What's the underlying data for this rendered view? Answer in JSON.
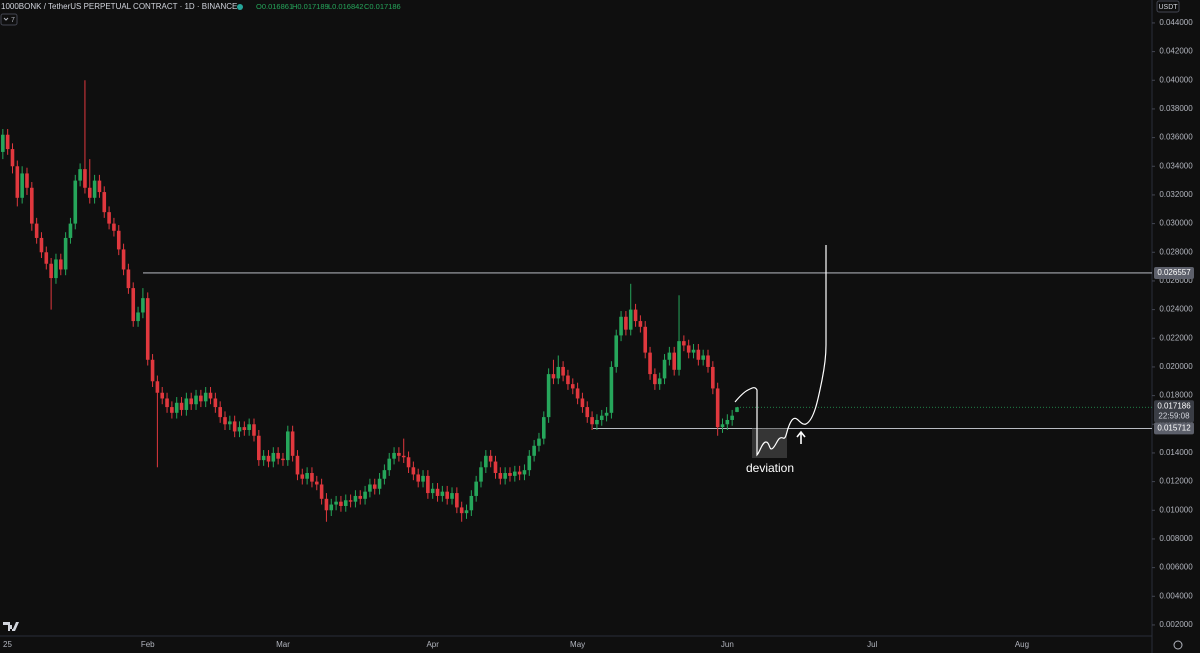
{
  "header": {
    "title": "1000BONK / TetherUS PERPETUAL CONTRACT · 1D · BINANCE",
    "ohlc": [
      "O0.016861",
      "H0.017189",
      "L0.016842",
      "C0.017186"
    ],
    "indicator_count": "7",
    "currency": "USDT"
  },
  "chart_data": {
    "type": "candlestick",
    "up_color": "#26a65b",
    "down_color": "#e0383e",
    "categories": [
      "25",
      null,
      null,
      null,
      null,
      null,
      null,
      null,
      null,
      null,
      null,
      null,
      null,
      null,
      null,
      null,
      null,
      null,
      null,
      null,
      null,
      null,
      null,
      null,
      null,
      null,
      null,
      null,
      null,
      null,
      null,
      "Feb",
      null,
      null,
      null,
      null,
      null,
      null,
      null,
      null,
      null,
      null,
      null,
      null,
      null,
      null,
      null,
      null,
      null,
      null,
      null,
      null,
      null,
      null,
      null,
      null,
      null,
      null,
      null,
      "Mar",
      null,
      null,
      null,
      null,
      null,
      null,
      null,
      null,
      null,
      null,
      null,
      null,
      null,
      null,
      null,
      null,
      null,
      null,
      null,
      null,
      null,
      null,
      null,
      null,
      null,
      null,
      null,
      null,
      null,
      null,
      "Apr",
      null,
      null,
      null,
      null,
      null,
      null,
      null,
      null,
      null,
      null,
      null,
      null,
      null,
      null,
      null,
      null,
      null,
      null,
      null,
      null,
      null,
      null,
      null,
      null,
      null,
      null,
      null,
      null,
      null,
      "May",
      null,
      null,
      null,
      null,
      null,
      null,
      null,
      null,
      null,
      null,
      null,
      null,
      null,
      null,
      null,
      null,
      null,
      null,
      null,
      null,
      null,
      null,
      null,
      null,
      null,
      null,
      null,
      null,
      null,
      null,
      "Jun",
      null,
      null,
      null,
      null,
      null,
      null,
      null,
      null,
      null,
      null,
      null,
      null,
      null,
      null,
      null,
      null,
      null,
      null,
      null,
      null,
      null,
      null,
      null,
      null,
      null,
      null,
      null,
      null,
      null,
      "Jul",
      null,
      null,
      null,
      null,
      null,
      null,
      null,
      null,
      null,
      null,
      null,
      null,
      null,
      null,
      null,
      null,
      null,
      null,
      null,
      null,
      null,
      null,
      null,
      null,
      null,
      null,
      null,
      null,
      null,
      null,
      "Aug"
    ],
    "open": [
      0.033,
      0.035,
      0.0362,
      0.0352,
      0.034,
      0.0318,
      0.0335,
      0.0325,
      0.03,
      0.029,
      0.028,
      0.0272,
      0.0262,
      0.0275,
      0.0268,
      0.029,
      0.03,
      0.033,
      0.0338,
      0.0325,
      0.0318,
      0.033,
      0.0322,
      0.0308,
      0.03,
      0.0295,
      0.0282,
      0.0268,
      0.0255,
      0.0232,
      0.0238,
      0.0248,
      0.0205,
      0.019,
      0.0182,
      0.0178,
      0.0172,
      0.0168,
      0.0175,
      0.017,
      0.0178,
      0.0174,
      0.018,
      0.0176,
      0.0182,
      0.0178,
      0.0172,
      0.0165,
      0.016,
      0.0162,
      0.0155,
      0.0158,
      0.0156,
      0.016,
      0.0152,
      0.0135,
      0.0138,
      0.0134,
      0.014,
      0.0136,
      0.0135,
      0.0155,
      0.0138,
      0.0125,
      0.0122,
      0.0126,
      0.012,
      0.0118,
      0.0108,
      0.01,
      0.0104,
      0.0106,
      0.0103,
      0.0107,
      0.0106,
      0.011,
      0.0108,
      0.0113,
      0.0118,
      0.0115,
      0.0122,
      0.0128,
      0.0136,
      0.014,
      0.0138,
      0.0137,
      0.013,
      0.0125,
      0.012,
      0.0124,
      0.0112,
      0.0115,
      0.011,
      0.0113,
      0.0108,
      0.0112,
      0.0102,
      0.0098,
      0.01,
      0.011,
      0.012,
      0.013,
      0.0138,
      0.0134,
      0.0126,
      0.0122,
      0.0126,
      0.0124,
      0.0127,
      0.0125,
      0.0128,
      0.0138,
      0.0145,
      0.015,
      0.0165,
      0.0195,
      0.0192,
      0.02,
      0.0194,
      0.0188,
      0.0185,
      0.0178,
      0.0172,
      0.0165,
      0.016,
      0.0163,
      0.0166,
      0.0168,
      0.02,
      0.0222,
      0.0235,
      0.0226,
      0.024,
      0.0232,
      0.0228,
      0.021,
      0.0195,
      0.0188,
      0.0192,
      0.0205,
      0.021,
      0.0198,
      0.0218,
      0.0215,
      0.021,
      0.0212,
      0.0205,
      0.0208,
      0.02,
      0.0185,
      0.0158,
      0.016,
      0.0163,
      0.016861,
      null,
      null,
      null,
      null,
      null,
      null,
      null,
      null,
      null,
      null,
      null,
      null,
      null,
      null,
      null,
      null,
      null,
      null,
      null,
      null,
      null,
      null,
      null,
      null,
      null,
      null,
      null,
      null,
      null,
      null,
      null,
      null,
      null,
      null,
      null,
      null,
      null,
      null,
      null,
      null,
      null,
      null,
      null,
      null,
      null,
      null,
      null,
      null,
      null,
      null,
      null,
      null,
      null,
      null,
      null,
      null,
      null,
      null,
      null
    ],
    "high": [
      0.0368,
      0.0366,
      0.0366,
      0.0356,
      0.0344,
      0.034,
      0.0339,
      0.0329,
      0.0304,
      0.0294,
      0.0284,
      0.0276,
      0.0279,
      0.0279,
      0.0294,
      0.0304,
      0.0334,
      0.0342,
      0.04,
      0.0345,
      0.0334,
      0.0334,
      0.0326,
      0.0312,
      0.0304,
      0.0299,
      0.0286,
      0.0272,
      0.0259,
      0.0242,
      0.0255,
      0.0252,
      0.0209,
      0.0194,
      0.0186,
      0.0182,
      0.0176,
      0.0179,
      0.0179,
      0.0182,
      0.0182,
      0.0184,
      0.0184,
      0.0186,
      0.0186,
      0.0182,
      0.0176,
      0.0169,
      0.0166,
      0.0166,
      0.0162,
      0.0162,
      0.0164,
      0.0164,
      0.0156,
      0.0142,
      0.0142,
      0.0144,
      0.0144,
      0.014,
      0.0159,
      0.0159,
      0.0142,
      0.0129,
      0.013,
      0.013,
      0.0124,
      0.0122,
      0.0112,
      0.0108,
      0.011,
      0.011,
      0.0111,
      0.0111,
      0.0114,
      0.0114,
      0.0117,
      0.0122,
      0.0122,
      0.0126,
      0.0132,
      0.014,
      0.0144,
      0.0144,
      0.015,
      0.0141,
      0.0134,
      0.0129,
      0.0128,
      0.0128,
      0.0119,
      0.0119,
      0.0117,
      0.0117,
      0.0116,
      0.0116,
      0.0106,
      0.0104,
      0.0114,
      0.0124,
      0.0134,
      0.0142,
      0.0142,
      0.0138,
      0.013,
      0.013,
      0.013,
      0.0131,
      0.0131,
      0.0132,
      0.0142,
      0.0149,
      0.0154,
      0.0169,
      0.0199,
      0.0205,
      0.0208,
      0.0204,
      0.0198,
      0.0192,
      0.0189,
      0.0182,
      0.0176,
      0.0169,
      0.0167,
      0.017,
      0.0172,
      0.0204,
      0.0226,
      0.0239,
      0.0239,
      0.0258,
      0.0244,
      0.0236,
      0.0232,
      0.0214,
      0.0199,
      0.0196,
      0.0209,
      0.0214,
      0.0214,
      0.025,
      0.0222,
      0.0219,
      0.0216,
      0.0216,
      0.0212,
      0.0212,
      0.0204,
      0.0189,
      0.0164,
      0.0167,
      0.017,
      0.017189,
      null,
      null,
      null,
      null,
      null,
      null,
      null,
      null,
      null,
      null,
      null,
      null,
      null,
      null,
      null,
      null,
      null,
      null,
      null,
      null,
      null,
      null,
      null,
      null,
      null,
      null,
      null,
      null,
      null,
      null,
      null,
      null,
      null,
      null,
      null,
      null,
      null,
      null,
      null,
      null,
      null,
      null,
      null,
      null,
      null,
      null,
      null,
      null,
      null,
      null,
      null,
      null,
      null,
      null,
      null,
      null,
      null,
      null,
      null
    ],
    "low": [
      0.0325,
      0.0345,
      0.0348,
      0.0335,
      0.0312,
      0.0314,
      0.032,
      0.0295,
      0.0286,
      0.0276,
      0.0268,
      0.024,
      0.0258,
      0.0264,
      0.0264,
      0.0286,
      0.0296,
      0.0326,
      0.0321,
      0.0314,
      0.0314,
      0.0318,
      0.0304,
      0.0296,
      0.0291,
      0.0278,
      0.0264,
      0.0251,
      0.0228,
      0.0228,
      0.0234,
      0.0201,
      0.0186,
      0.013,
      0.0174,
      0.0168,
      0.0164,
      0.0164,
      0.0166,
      0.0166,
      0.017,
      0.017,
      0.0172,
      0.0172,
      0.0174,
      0.0168,
      0.0161,
      0.0156,
      0.0156,
      0.0151,
      0.0151,
      0.0152,
      0.0152,
      0.0148,
      0.0131,
      0.0131,
      0.013,
      0.013,
      0.0132,
      0.0131,
      0.0131,
      0.0134,
      0.0121,
      0.0118,
      0.0118,
      0.0116,
      0.0114,
      0.0104,
      0.0092,
      0.0096,
      0.01,
      0.0099,
      0.0099,
      0.0102,
      0.0102,
      0.0104,
      0.0104,
      0.0109,
      0.0111,
      0.0111,
      0.0118,
      0.0124,
      0.0132,
      0.0134,
      0.0133,
      0.0126,
      0.0121,
      0.0116,
      0.0116,
      0.0108,
      0.0108,
      0.0106,
      0.0106,
      0.0104,
      0.0104,
      0.0098,
      0.0092,
      0.0094,
      0.0096,
      0.0106,
      0.0116,
      0.0126,
      0.013,
      0.0122,
      0.0118,
      0.0118,
      0.012,
      0.012,
      0.0121,
      0.0121,
      0.0124,
      0.0134,
      0.0141,
      0.0146,
      0.0161,
      0.0188,
      0.0188,
      0.019,
      0.0184,
      0.0181,
      0.0174,
      0.0168,
      0.0161,
      0.0156,
      0.0156,
      0.0159,
      0.0162,
      0.0164,
      0.0196,
      0.0218,
      0.0222,
      0.0222,
      0.0228,
      0.0224,
      0.0206,
      0.0191,
      0.0184,
      0.0184,
      0.0188,
      0.0201,
      0.0194,
      0.0194,
      0.0211,
      0.0206,
      0.0206,
      0.0201,
      0.0201,
      0.0196,
      0.0181,
      0.0152,
      0.0154,
      0.0156,
      0.0159,
      0.016842,
      null,
      null,
      null,
      null,
      null,
      null,
      null,
      null,
      null,
      null,
      null,
      null,
      null,
      null,
      null,
      null,
      null,
      null,
      null,
      null,
      null,
      null,
      null,
      null,
      null,
      null,
      null,
      null,
      null,
      null,
      null,
      null,
      null,
      null,
      null,
      null,
      null,
      null,
      null,
      null,
      null,
      null,
      null,
      null,
      null,
      null,
      null,
      null,
      null,
      null,
      null,
      null,
      null,
      null,
      null,
      null,
      null,
      null,
      null
    ],
    "close": [
      0.035,
      0.0362,
      0.0352,
      0.034,
      0.0318,
      0.0335,
      0.0325,
      0.03,
      0.029,
      0.028,
      0.0272,
      0.0262,
      0.0275,
      0.0268,
      0.029,
      0.03,
      0.033,
      0.0338,
      0.0325,
      0.0318,
      0.033,
      0.0322,
      0.0308,
      0.03,
      0.0295,
      0.0282,
      0.0268,
      0.0255,
      0.0232,
      0.0238,
      0.0248,
      0.0205,
      0.019,
      0.0182,
      0.0178,
      0.0172,
      0.0168,
      0.0175,
      0.017,
      0.0178,
      0.0174,
      0.018,
      0.0176,
      0.0182,
      0.0178,
      0.0172,
      0.0165,
      0.016,
      0.0162,
      0.0155,
      0.0158,
      0.0156,
      0.016,
      0.0152,
      0.0135,
      0.0138,
      0.0134,
      0.014,
      0.0136,
      0.0135,
      0.0155,
      0.0138,
      0.0125,
      0.0122,
      0.0126,
      0.012,
      0.0118,
      0.0108,
      0.01,
      0.0104,
      0.0106,
      0.0103,
      0.0107,
      0.0106,
      0.011,
      0.0108,
      0.0113,
      0.0118,
      0.0115,
      0.0122,
      0.0128,
      0.0136,
      0.014,
      0.0138,
      0.0137,
      0.013,
      0.0125,
      0.012,
      0.0124,
      0.0112,
      0.0115,
      0.011,
      0.0113,
      0.0108,
      0.0112,
      0.0102,
      0.0098,
      0.01,
      0.011,
      0.012,
      0.013,
      0.0138,
      0.0134,
      0.0126,
      0.0122,
      0.0126,
      0.0124,
      0.0127,
      0.0125,
      0.0128,
      0.0138,
      0.0145,
      0.015,
      0.0165,
      0.0195,
      0.0192,
      0.02,
      0.0194,
      0.0188,
      0.0185,
      0.0178,
      0.0172,
      0.0165,
      0.016,
      0.0163,
      0.0166,
      0.0168,
      0.02,
      0.0222,
      0.0235,
      0.0226,
      0.024,
      0.0232,
      0.0228,
      0.021,
      0.0195,
      0.0188,
      0.0192,
      0.0205,
      0.021,
      0.0198,
      0.0218,
      0.0215,
      0.021,
      0.0212,
      0.0205,
      0.0208,
      0.02,
      0.0185,
      0.0158,
      0.016,
      0.0163,
      0.0166,
      0.017186,
      null,
      null,
      null,
      null,
      null,
      null,
      null,
      null,
      null,
      null,
      null,
      null,
      null,
      null,
      null,
      null,
      null,
      null,
      null,
      null,
      null,
      null,
      null,
      null,
      null,
      null,
      null,
      null,
      null,
      null,
      null,
      null,
      null,
      null,
      null,
      null,
      null,
      null,
      null,
      null,
      null,
      null,
      null,
      null,
      null,
      null,
      null,
      null,
      null,
      null,
      null,
      null,
      null,
      null,
      null,
      null,
      null,
      null,
      null
    ],
    "ylim": [
      0.00095,
      0.0456
    ],
    "yticks": [
      {
        "value": 0.002,
        "label": "0.002000"
      },
      {
        "value": 0.004,
        "label": "0.004000"
      },
      {
        "value": 0.006,
        "label": "0.006000"
      },
      {
        "value": 0.008,
        "label": "0.008000"
      },
      {
        "value": 0.01,
        "label": "0.010000"
      },
      {
        "value": 0.012,
        "label": "0.012000"
      },
      {
        "value": 0.014,
        "label": "0.014000"
      },
      {
        "value": 0.016,
        "label": "0.016000"
      },
      {
        "value": 0.018,
        "label": "0.018000"
      },
      {
        "value": 0.02,
        "label": "0.020000"
      },
      {
        "value": 0.022,
        "label": "0.022000"
      },
      {
        "value": 0.024,
        "label": "0.024000"
      },
      {
        "value": 0.026,
        "label": "0.026000"
      },
      {
        "value": 0.028,
        "label": "0.028000"
      },
      {
        "value": 0.03,
        "label": "0.030000"
      },
      {
        "value": 0.032,
        "label": "0.032000"
      },
      {
        "value": 0.034,
        "label": "0.034000"
      },
      {
        "value": 0.036,
        "label": "0.036000"
      },
      {
        "value": 0.038,
        "label": "0.038000"
      },
      {
        "value": 0.04,
        "label": "0.040000"
      },
      {
        "value": 0.042,
        "label": "0.042000"
      },
      {
        "value": 0.044,
        "label": "0.044000"
      }
    ],
    "levels": [
      {
        "value": 0.026557,
        "label": "0.026557"
      },
      {
        "value": 0.015712,
        "label": "0.015712"
      }
    ],
    "last_price": {
      "value": 0.017186,
      "label": "0.017186"
    },
    "countdown": "22:59:08",
    "annotation": "deviation"
  }
}
